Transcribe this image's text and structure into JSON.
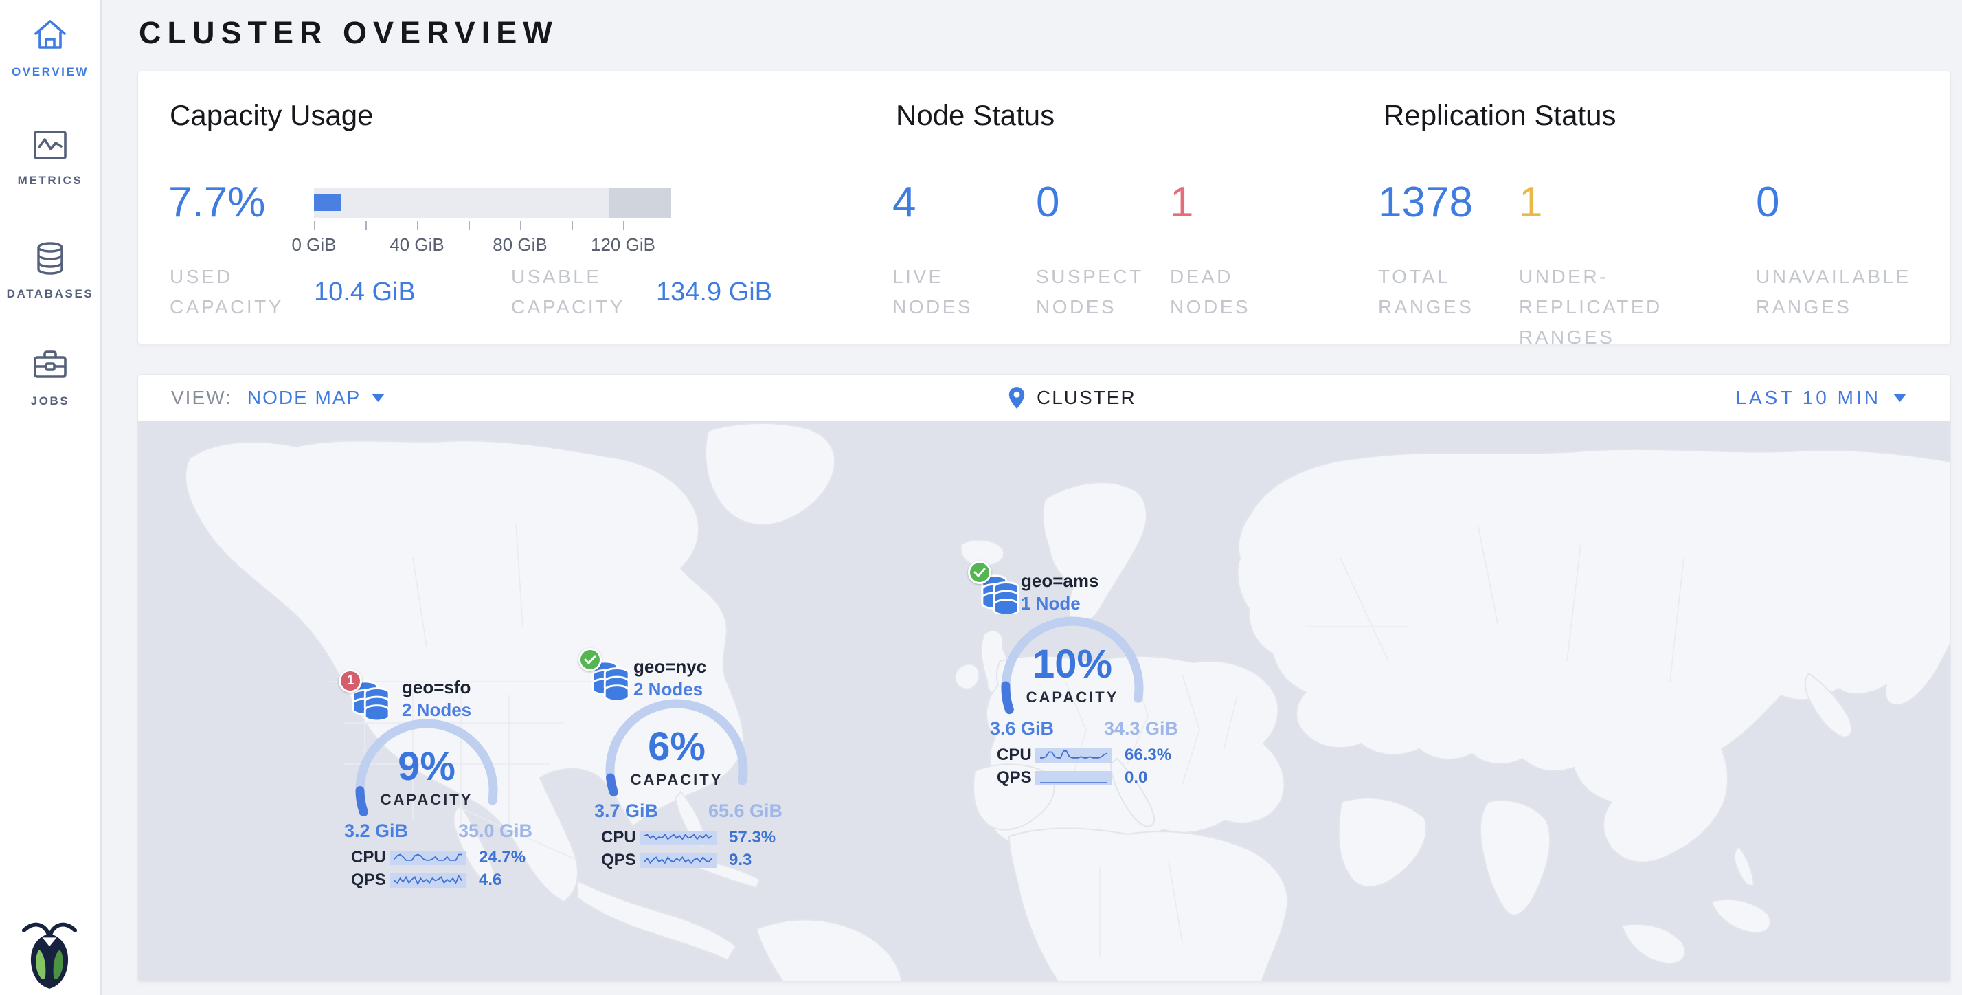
{
  "sidebar": {
    "items": [
      {
        "label": "OVERVIEW",
        "active": true
      },
      {
        "label": "METRICS",
        "active": false
      },
      {
        "label": "DATABASES",
        "active": false
      },
      {
        "label": "JOBS",
        "active": false
      }
    ]
  },
  "header": {
    "title": "CLUSTER OVERVIEW"
  },
  "summary": {
    "capacity": {
      "heading": "Capacity Usage",
      "percent": "7.7%",
      "percent_value": 7.7,
      "axis_ticks": [
        "0 GiB",
        "40 GiB",
        "80 GiB",
        "120 GiB"
      ],
      "used_label": "USED CAPACITY",
      "used_value": "10.4 GiB",
      "usable_label": "USABLE CAPACITY",
      "usable_value": "134.9 GiB"
    },
    "node_status": {
      "heading": "Node Status",
      "stats": [
        {
          "value": "4",
          "label": "LIVE NODES",
          "state": "live"
        },
        {
          "value": "0",
          "label": "SUSPECT NODES",
          "state": "suspect"
        },
        {
          "value": "1",
          "label": "DEAD NODES",
          "state": "dead"
        }
      ]
    },
    "replication_status": {
      "heading": "Replication Status",
      "stats": [
        {
          "value": "1378",
          "label": "TOTAL RANGES",
          "state": "normal"
        },
        {
          "value": "1",
          "label": "UNDER-REPLICATED RANGES",
          "state": "warning"
        },
        {
          "value": "0",
          "label": "UNAVAILABLE RANGES",
          "state": "normal"
        }
      ]
    }
  },
  "map_toolbar": {
    "view_label": "VIEW:",
    "view_value": "NODE MAP",
    "scope_label": "CLUSTER",
    "time_range": "LAST 10 MIN"
  },
  "node_map": {
    "localities": [
      {
        "name": "geo=sfo",
        "nodes": "2 Nodes",
        "status": "dead",
        "badge_count": "1",
        "percent": "9%",
        "percent_value": 9,
        "capacity_label": "CAPACITY",
        "used": "3.2 GiB",
        "capacity": "35.0 GiB",
        "cpu_label": "CPU",
        "cpu": "24.7%",
        "qps_label": "QPS",
        "qps": "4.6",
        "cpu_spark": [
          4,
          7,
          8,
          6,
          3,
          3,
          3,
          7,
          8,
          7,
          4,
          3,
          3,
          4,
          6,
          3,
          3,
          3,
          6,
          3,
          3,
          3,
          8,
          8
        ],
        "qps_spark": [
          5,
          3,
          7,
          4,
          8,
          3,
          6,
          8,
          2,
          7,
          4,
          6,
          3,
          7,
          5,
          6,
          8,
          3,
          6,
          4,
          7,
          3,
          9,
          5
        ]
      },
      {
        "name": "geo=nyc",
        "nodes": "2 Nodes",
        "status": "healthy",
        "badge_count": "",
        "percent": "6%",
        "percent_value": 6,
        "capacity_label": "CAPACITY",
        "used": "3.7 GiB",
        "capacity": "65.6 GiB",
        "cpu_label": "CPU",
        "cpu": "57.3%",
        "qps_label": "QPS",
        "qps": "9.3",
        "cpu_spark": [
          7,
          8,
          5,
          7,
          4,
          6,
          5,
          8,
          4,
          6,
          8,
          5,
          7,
          4,
          8,
          5,
          6,
          8,
          4,
          7,
          5,
          8,
          5,
          7
        ],
        "qps_spark": [
          4,
          7,
          3,
          6,
          8,
          4,
          6,
          3,
          8,
          5,
          4,
          7,
          5,
          8,
          4,
          6,
          3,
          6,
          7,
          4,
          8,
          5,
          4,
          7
        ]
      },
      {
        "name": "geo=ams",
        "nodes": "1 Node",
        "status": "healthy",
        "badge_count": "",
        "percent": "10%",
        "percent_value": 10,
        "capacity_label": "CAPACITY",
        "used": "3.6 GiB",
        "capacity": "34.3 GiB",
        "cpu_label": "CPU",
        "cpu": "66.3%",
        "qps_label": "QPS",
        "qps": "0.0",
        "cpu_spark": [
          3,
          3,
          4,
          8,
          8,
          4,
          3,
          3,
          9,
          9,
          4,
          3,
          3,
          3,
          4,
          3,
          3,
          4,
          3,
          3,
          3,
          4,
          6,
          7
        ],
        "qps_spark": [
          1,
          1,
          1,
          1,
          1,
          1,
          1,
          1,
          1,
          1,
          1,
          1,
          1,
          1,
          1,
          1,
          1,
          1,
          1,
          1,
          1,
          1,
          1,
          1
        ]
      }
    ]
  },
  "colors": {
    "accent_blue": "#3f7ce1",
    "dead_red": "#e26e7c",
    "warning_yellow": "#eab945",
    "healthy_green": "#54b552",
    "ocean": "#dfe2eb",
    "land": "#f5f6f9"
  }
}
